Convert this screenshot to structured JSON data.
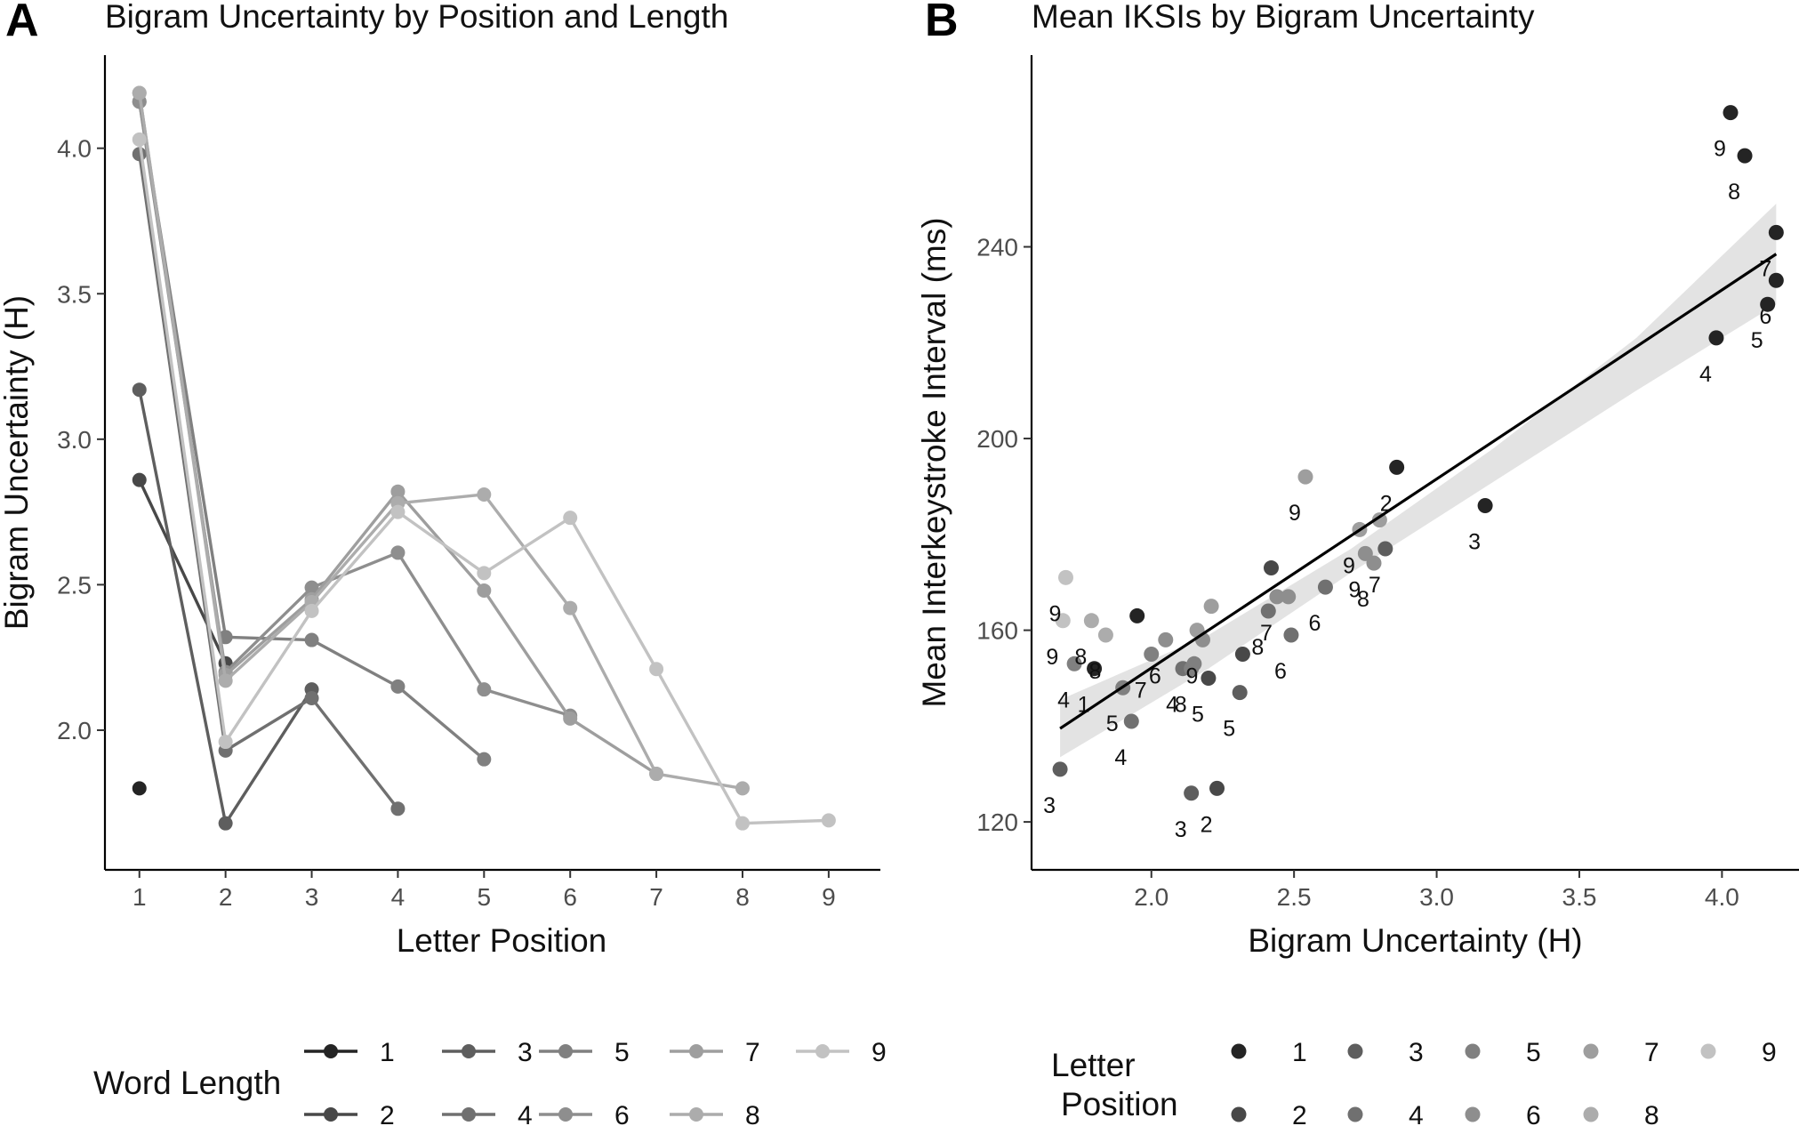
{
  "chart_data": [
    {
      "tag": "A",
      "type": "line",
      "title": "Bigram Uncertainty by Position and Length",
      "xlabel": "Letter Position",
      "ylabel": "Bigram Uncertainty (H)",
      "xlim": [
        0.6,
        9.6
      ],
      "ylim": [
        1.52,
        4.32
      ],
      "xticks": [
        "1",
        "2",
        "3",
        "4",
        "5",
        "6",
        "7",
        "8",
        "9"
      ],
      "yticks": [
        "2.0",
        "2.5",
        "3.0",
        "3.5",
        "4.0"
      ],
      "legend_title": "Word Length",
      "legend_placement": "bottom",
      "grid": false,
      "series": [
        {
          "name": "1",
          "color": "#242424",
          "x": [
            1
          ],
          "y": [
            1.8
          ]
        },
        {
          "name": "2",
          "color": "#484848",
          "x": [
            1,
            2
          ],
          "y": [
            2.86,
            2.23
          ]
        },
        {
          "name": "3",
          "color": "#5e5e5e",
          "x": [
            1,
            2,
            3
          ],
          "y": [
            3.17,
            1.68,
            2.14
          ]
        },
        {
          "name": "4",
          "color": "#707070",
          "x": [
            1,
            2,
            3,
            4
          ],
          "y": [
            3.98,
            1.93,
            2.11,
            1.73
          ]
        },
        {
          "name": "5",
          "color": "#808080",
          "x": [
            1,
            2,
            3,
            4,
            5
          ],
          "y": [
            4.16,
            2.32,
            2.31,
            2.15,
            1.9
          ]
        },
        {
          "name": "6",
          "color": "#8e8e8e",
          "x": [
            1,
            2,
            3,
            4,
            5,
            6
          ],
          "y": [
            4.16,
            2.2,
            2.49,
            2.61,
            2.14,
            2.05
          ]
        },
        {
          "name": "7",
          "color": "#9e9e9e",
          "x": [
            1,
            2,
            3,
            4,
            5,
            6,
            7
          ],
          "y": [
            4.19,
            2.19,
            2.45,
            2.82,
            2.48,
            2.04,
            1.85
          ]
        },
        {
          "name": "8",
          "color": "#acacac",
          "x": [
            1,
            2,
            3,
            4,
            5,
            6,
            7,
            8
          ],
          "y": [
            4.19,
            2.17,
            2.44,
            2.78,
            2.81,
            2.42,
            1.85,
            1.8
          ]
        },
        {
          "name": "9",
          "color": "#c2c2c2",
          "x": [
            1,
            2,
            3,
            4,
            5,
            6,
            7,
            8,
            9
          ],
          "y": [
            4.03,
            1.96,
            2.41,
            2.75,
            2.54,
            2.73,
            2.21,
            1.68,
            1.69
          ]
        }
      ]
    },
    {
      "tag": "B",
      "type": "scatter",
      "title": "Mean IKSIs by Bigram Uncertainty",
      "xlabel": "Bigram Uncertainty (H)",
      "ylabel": "Mean Interkeystroke Interval (ms)",
      "xlim": [
        1.58,
        4.27
      ],
      "ylim": [
        110,
        280
      ],
      "xticks": [
        "2.0",
        "2.5",
        "3.0",
        "3.5",
        "4.0"
      ],
      "yticks": [
        "120",
        "160",
        "200",
        "240"
      ],
      "legend_title": [
        "Letter",
        "Position"
      ],
      "legend_placement": "bottom",
      "grid": false,
      "fit_line": {
        "x": [
          1.68,
          4.19
        ],
        "y": [
          139.5,
          238.5
        ]
      },
      "fit_band": {
        "x": [
          1.68,
          2.2,
          2.7,
          3.2,
          3.7,
          4.19
        ],
        "lower": [
          133.5,
          152,
          172,
          191,
          210,
          228
        ],
        "upper": [
          145.5,
          159,
          177,
          198,
          221,
          249
        ]
      },
      "legend_items": [
        {
          "name": "1",
          "color": "#242424"
        },
        {
          "name": "2",
          "color": "#484848"
        },
        {
          "name": "3",
          "color": "#5e5e5e"
        },
        {
          "name": "4",
          "color": "#707070"
        },
        {
          "name": "5",
          "color": "#808080"
        },
        {
          "name": "6",
          "color": "#8e8e8e"
        },
        {
          "name": "7",
          "color": "#9e9e9e"
        },
        {
          "name": "8",
          "color": "#acacac"
        },
        {
          "name": "9",
          "color": "#c2c2c2"
        }
      ],
      "points": [
        {
          "x": 4.03,
          "y": 268,
          "pos": 1,
          "label": "9"
        },
        {
          "x": 4.08,
          "y": 259,
          "pos": 1,
          "label": "8"
        },
        {
          "x": 4.19,
          "y": 243,
          "pos": 1,
          "label": "7"
        },
        {
          "x": 4.19,
          "y": 233,
          "pos": 1,
          "label": "6"
        },
        {
          "x": 4.16,
          "y": 228,
          "pos": 1,
          "label": "5"
        },
        {
          "x": 3.98,
          "y": 221,
          "pos": 1,
          "label": "4"
        },
        {
          "x": 3.17,
          "y": 186,
          "pos": 1,
          "label": "3"
        },
        {
          "x": 2.86,
          "y": 194,
          "pos": 1,
          "label": "2"
        },
        {
          "x": 1.8,
          "y": 152,
          "pos": 1,
          "label": "1"
        },
        {
          "x": 2.23,
          "y": 127,
          "pos": 2,
          "label": "2"
        },
        {
          "x": 1.68,
          "y": 131,
          "pos": 3,
          "label": "3"
        },
        {
          "x": 2.14,
          "y": 126,
          "pos": 3,
          "label": "3"
        },
        {
          "x": 1.93,
          "y": 141,
          "pos": 4,
          "label": "4"
        },
        {
          "x": 2.11,
          "y": 152,
          "pos": 4,
          "label": "4"
        },
        {
          "x": 1.95,
          "y": 163,
          "pos": 1,
          "label": ""
        },
        {
          "x": 2.32,
          "y": 155,
          "pos": 2,
          "label": ""
        },
        {
          "x": 2.2,
          "y": 150,
          "pos": 2,
          "label": "5"
        },
        {
          "x": 2.31,
          "y": 147,
          "pos": 3,
          "label": "5"
        },
        {
          "x": 2.41,
          "y": 164,
          "pos": 4,
          "label": "8"
        },
        {
          "x": 2.42,
          "y": 173,
          "pos": 2,
          "label": ""
        },
        {
          "x": 2.82,
          "y": 177,
          "pos": 3,
          "label": "7"
        },
        {
          "x": 2.61,
          "y": 169,
          "pos": 4,
          "label": "6"
        },
        {
          "x": 2.49,
          "y": 159,
          "pos": 4,
          "label": "6"
        },
        {
          "x": 2.14,
          "y": 152,
          "pos": 5,
          "label": "8"
        },
        {
          "x": 2.15,
          "y": 153,
          "pos": 5,
          "label": ""
        },
        {
          "x": 2.0,
          "y": 155,
          "pos": 5,
          "label": "7"
        },
        {
          "x": 1.9,
          "y": 148,
          "pos": 5,
          "label": "5"
        },
        {
          "x": 1.73,
          "y": 153,
          "pos": 5,
          "label": "4"
        },
        {
          "x": 2.05,
          "y": 158,
          "pos": 6,
          "label": "6"
        },
        {
          "x": 2.18,
          "y": 158,
          "pos": 6,
          "label": "9"
        },
        {
          "x": 2.44,
          "y": 167,
          "pos": 6,
          "label": "7"
        },
        {
          "x": 2.48,
          "y": 167,
          "pos": 6,
          "label": ""
        },
        {
          "x": 2.75,
          "y": 176,
          "pos": 6,
          "label": "9"
        },
        {
          "x": 2.78,
          "y": 174,
          "pos": 6,
          "label": "8"
        },
        {
          "x": 2.73,
          "y": 181,
          "pos": 7,
          "label": "9"
        },
        {
          "x": 2.8,
          "y": 183,
          "pos": 7,
          "label": ""
        },
        {
          "x": 2.54,
          "y": 192,
          "pos": 7,
          "label": "9"
        },
        {
          "x": 2.16,
          "y": 160,
          "pos": 7,
          "label": ""
        },
        {
          "x": 2.21,
          "y": 165,
          "pos": 7,
          "label": ""
        },
        {
          "x": 1.84,
          "y": 159,
          "pos": 8,
          "label": "8"
        },
        {
          "x": 1.79,
          "y": 162,
          "pos": 8,
          "label": "8"
        },
        {
          "x": 1.69,
          "y": 162,
          "pos": 9,
          "label": "9"
        },
        {
          "x": 1.7,
          "y": 171,
          "pos": 9,
          "label": "9"
        }
      ]
    }
  ]
}
